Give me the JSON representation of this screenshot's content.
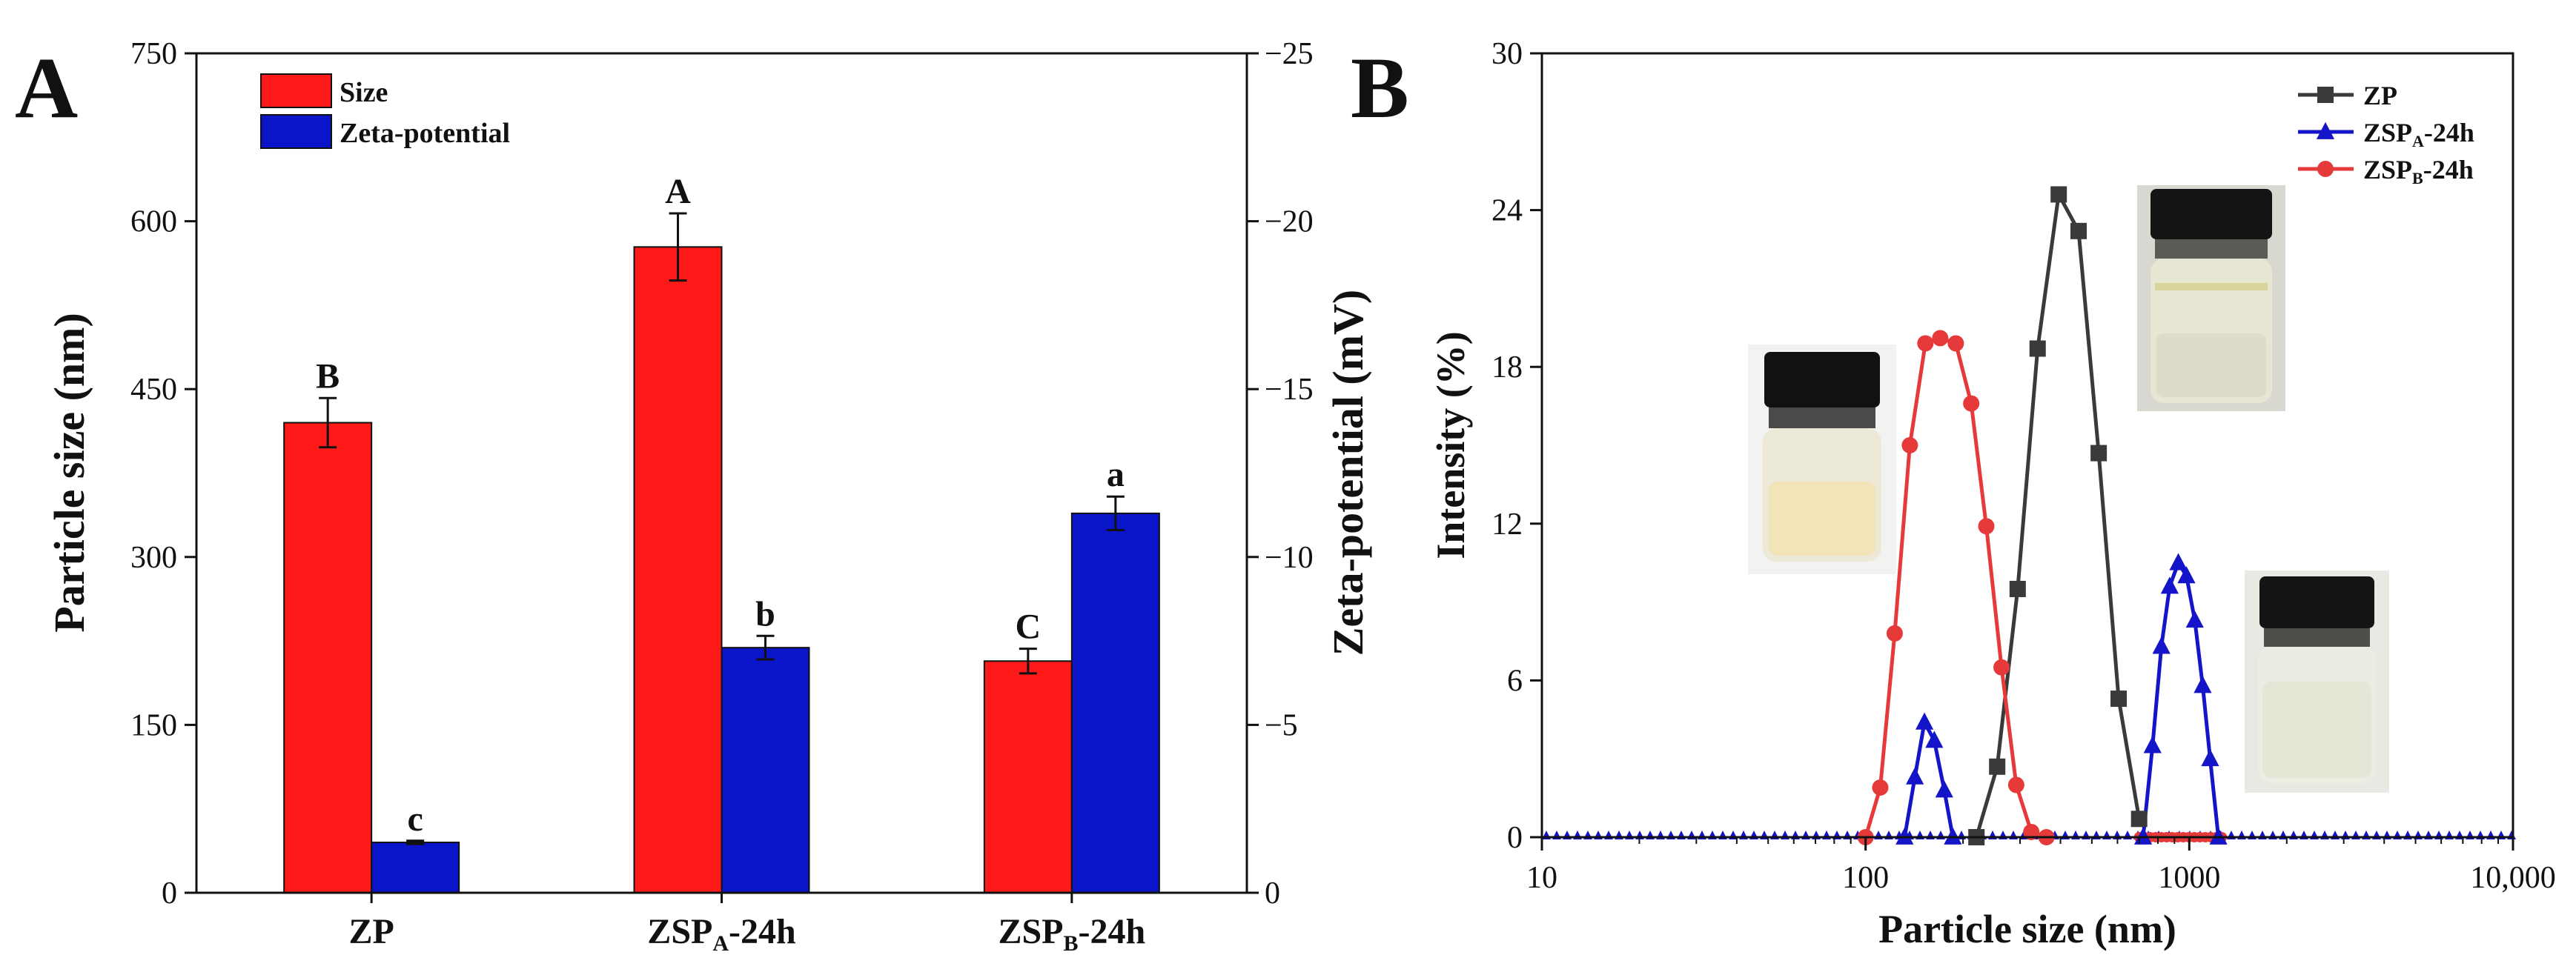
{
  "colors": {
    "size_bar": "#ff1a1a",
    "zeta_bar": "#0a14c8",
    "zp_line": "#3a3a3a",
    "zspa_line": "#1414c8",
    "zspb_line": "#e63a3a"
  },
  "chart_data": [
    {
      "panel": "A",
      "type": "bar",
      "title": "",
      "categories": [
        "ZP",
        "ZSPA-24h",
        "ZSPB-24h"
      ],
      "category_labels": [
        {
          "main": "ZP",
          "sub": "",
          "suffix": ""
        },
        {
          "main": "ZSP",
          "sub": "A",
          "suffix": "-24h"
        },
        {
          "main": "ZSP",
          "sub": "B",
          "suffix": "-24h"
        }
      ],
      "legend": [
        "Size",
        "Zeta-potential"
      ],
      "legend_position": "top-left",
      "ylabel": "Particle size (nm)",
      "y2label": "Zeta-potential (mV)",
      "ylim": [
        0,
        750
      ],
      "y2lim": [
        0,
        -25
      ],
      "yticks": [
        "0",
        "150",
        "300",
        "450",
        "600",
        "750"
      ],
      "y2ticks": [
        "0",
        "−5",
        "−10",
        "−15",
        "−20",
        "−25"
      ],
      "series": [
        {
          "name": "Size",
          "axis": "left",
          "values": [
            420,
            577,
            207
          ],
          "errors": [
            22,
            30,
            11
          ],
          "letters": [
            "B",
            "A",
            "C"
          ]
        },
        {
          "name": "Zeta-potential",
          "axis": "right",
          "values": [
            -1.5,
            -7.3,
            -11.3
          ],
          "errors": [
            0.05,
            0.35,
            0.5
          ],
          "letters": [
            "c",
            "b",
            "a"
          ]
        }
      ]
    },
    {
      "panel": "B",
      "type": "line",
      "title": "",
      "xlabel": "Particle size (nm)",
      "ylabel": "Intensity (%)",
      "xscale": "log",
      "xlim": [
        10,
        10000
      ],
      "ylim": [
        0,
        30
      ],
      "xticks": [
        "10",
        "100",
        "1000",
        "10,000"
      ],
      "yticks": [
        "0",
        "6",
        "12",
        "18",
        "24",
        "30"
      ],
      "legend_position": "top-right",
      "series": [
        {
          "name": "ZP",
          "label_main": "ZP",
          "label_sub": "",
          "label_suffix": "",
          "marker": "square",
          "x": [
            220,
            255,
            295,
            340,
            395,
            455,
            525,
            605,
            700
          ],
          "y": [
            0,
            2.7,
            9.5,
            18.7,
            24.6,
            23.2,
            14.7,
            5.3,
            0.7
          ]
        },
        {
          "name": "ZSPA-24h",
          "label_main": "ZSP",
          "label_sub": "A",
          "label_suffix": "-24h",
          "marker": "triangle",
          "x": [
            132,
            142,
            152,
            163,
            175,
            186,
            720,
            770,
            820,
            870,
            925,
            980,
            1040,
            1100,
            1160,
            1230
          ],
          "y": [
            0,
            2.3,
            4.4,
            3.7,
            1.8,
            0,
            0,
            3.5,
            7.3,
            9.6,
            10.5,
            10.0,
            8.3,
            5.8,
            3.0,
            0
          ]
        },
        {
          "name": "ZSPB-24h",
          "label_main": "ZSP",
          "label_sub": "B",
          "label_suffix": "-24h",
          "marker": "circle",
          "x": [
            100,
            111,
            123,
            137,
            153,
            170,
            190,
            212,
            236,
            263,
            292,
            325,
            362
          ],
          "y": [
            0,
            1.9,
            7.8,
            15.0,
            18.9,
            19.1,
            18.9,
            16.6,
            11.9,
            6.5,
            2.0,
            0.2,
            0
          ]
        }
      ]
    }
  ],
  "panel_labels": [
    "A",
    "B"
  ]
}
